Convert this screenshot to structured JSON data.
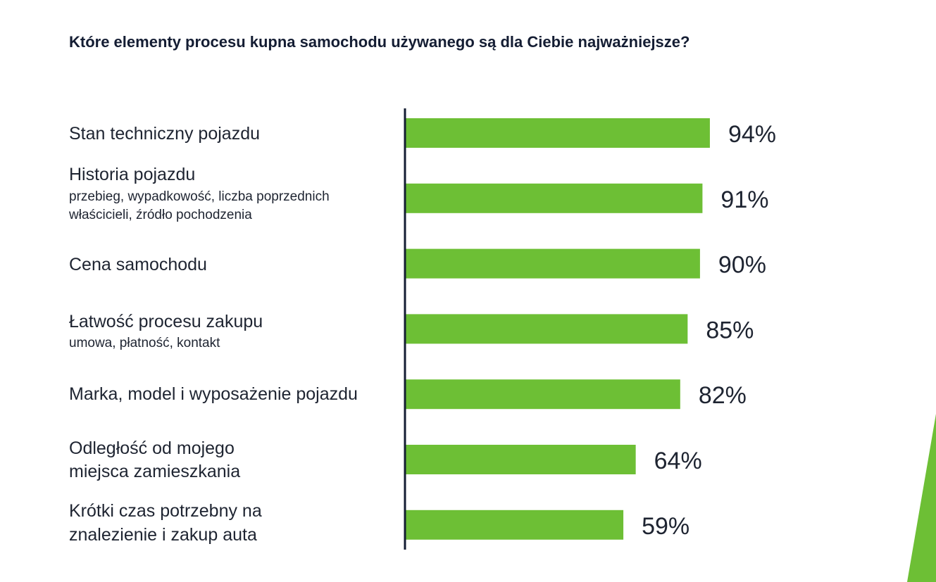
{
  "chart_data": {
    "type": "bar",
    "orientation": "horizontal",
    "title": "Które elementy procesu kupna samochodu używanego są dla Ciebie najważniejsze?",
    "categories": [
      {
        "label": "Stan techniczny pojazdu",
        "sublabel": []
      },
      {
        "label": "Historia pojazdu",
        "sublabel": [
          "przebieg, wypadkowość, liczba poprzednich",
          "właścicieli, źródło pochodzenia"
        ]
      },
      {
        "label": "Cena samochodu",
        "sublabel": []
      },
      {
        "label": "Łatwość procesu zakupu",
        "sublabel": [
          "umowa, płatność, kontakt"
        ]
      },
      {
        "label": "Marka, model i wyposażenie pojazdu",
        "sublabel": []
      },
      {
        "label": [
          "Odległość od mojego",
          "miejsca zamieszkania"
        ],
        "sublabel": []
      },
      {
        "label": [
          "Krótki czas potrzebny na",
          "znalezienie i zakup auta"
        ],
        "sublabel": []
      }
    ],
    "values": [
      94,
      91,
      90,
      85,
      82,
      64,
      59
    ],
    "value_labels": [
      "94%",
      "91%",
      "90%",
      "85%",
      "82%",
      "64%",
      "59%"
    ],
    "unit": "%",
    "grid": false,
    "legend": "none",
    "colors": {
      "bar": "#6dbf35",
      "text": "#1e2431",
      "axis": "#141d33",
      "accent": "#6dbf35"
    }
  }
}
